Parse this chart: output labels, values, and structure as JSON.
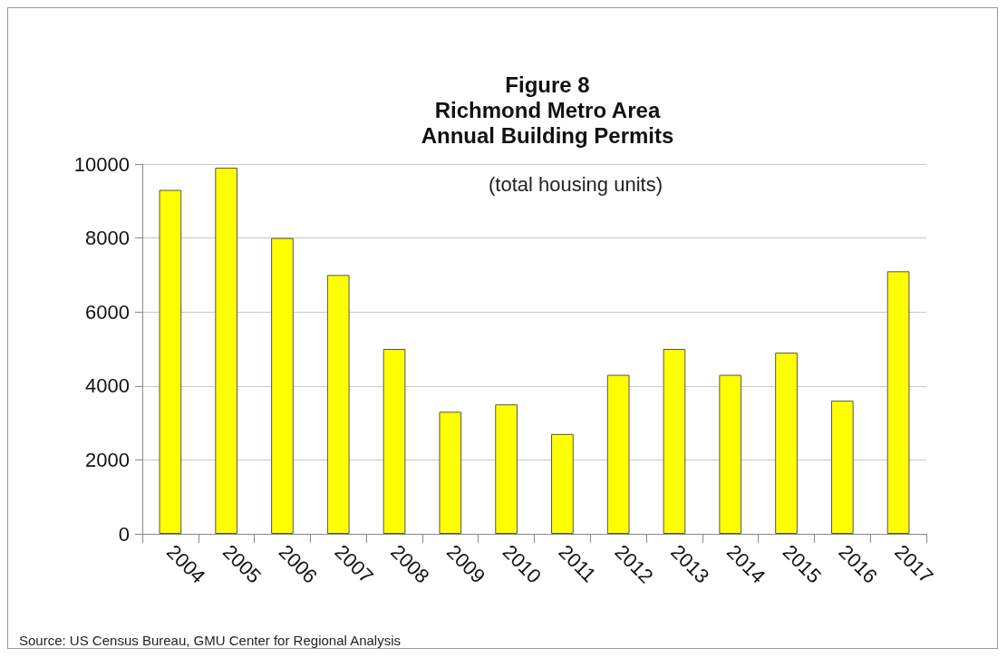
{
  "chart_data": {
    "type": "bar",
    "title": "Figure 8\nRichmond Metro Area\nAnnual Building Permits",
    "subtitle": "(total housing units)",
    "categories": [
      "2004",
      "2005",
      "2006",
      "2007",
      "2008",
      "2009",
      "2010",
      "2011",
      "2012",
      "2013",
      "2014",
      "2015",
      "2016",
      "2017"
    ],
    "values": [
      9300,
      9900,
      8000,
      7000,
      5000,
      3300,
      3500,
      2700,
      4300,
      5000,
      4300,
      4900,
      3600,
      7100
    ],
    "color": "#ffff00",
    "ylim": [
      0,
      10000
    ],
    "yticks": [
      0,
      2000,
      4000,
      6000,
      8000,
      10000
    ],
    "grid": "y",
    "annotations": [
      "Source: US Census Bureau, GMU Center for Regional Analysis"
    ]
  }
}
